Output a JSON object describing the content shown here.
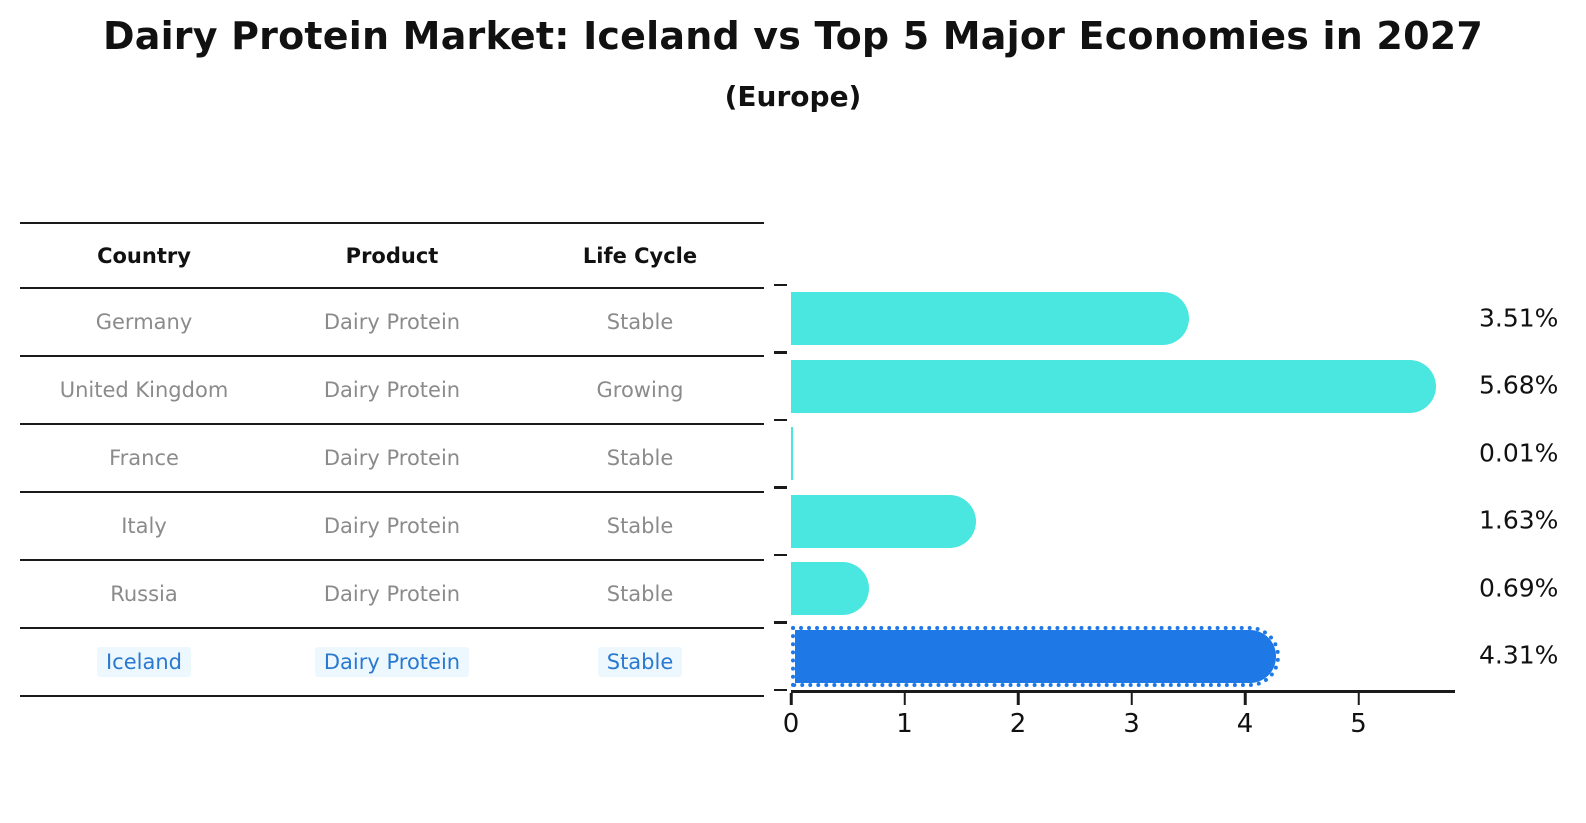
{
  "title": "Dairy Protein Market: Iceland vs Top 5 Major Economies in 2027",
  "subtitle": "(Europe)",
  "table": {
    "headers": [
      "Country",
      "Product",
      "Life Cycle"
    ],
    "rows": [
      {
        "country": "Germany",
        "product": "Dairy Protein",
        "life_cycle": "Stable",
        "highlight": false
      },
      {
        "country": "United Kingdom",
        "product": "Dairy Protein",
        "life_cycle": "Growing",
        "highlight": false
      },
      {
        "country": "France",
        "product": "Dairy Protein",
        "life_cycle": "Stable",
        "highlight": false
      },
      {
        "country": "Italy",
        "product": "Dairy Protein",
        "life_cycle": "Stable",
        "highlight": false
      },
      {
        "country": "Russia",
        "product": "Dairy Protein",
        "life_cycle": "Stable",
        "highlight": false
      },
      {
        "country": "Iceland",
        "product": "Dairy Protein",
        "life_cycle": "Stable",
        "highlight": true
      }
    ]
  },
  "chart_data": {
    "type": "bar",
    "orientation": "horizontal",
    "title": "Dairy Protein Market: Iceland vs Top 5 Major Economies in 2027",
    "subtitle": "(Europe)",
    "categories": [
      "Germany",
      "United Kingdom",
      "France",
      "Italy",
      "Russia",
      "Iceland"
    ],
    "values": [
      3.51,
      5.68,
      0.01,
      1.63,
      0.69,
      4.31
    ],
    "labels": [
      "3.51%",
      "5.68%",
      "0.01%",
      "1.63%",
      "0.69%",
      "4.31%"
    ],
    "x_ticks": [
      "0",
      "1",
      "2",
      "3",
      "4",
      "5"
    ],
    "xlim": [
      0,
      5.85
    ],
    "xlabel": "",
    "ylabel": "",
    "grid": false,
    "legend": "none",
    "bar_color": "#4ae6e0",
    "highlight_index": 5,
    "highlight_color": "#1e78e6",
    "highlight_edge_style": "dotted"
  },
  "colors": {
    "bar": "#4ae6e0",
    "highlight_bar": "#1e78e6",
    "highlight_text": "#2979d0",
    "cell_text": "#8b8b8b",
    "header_text": "#111111",
    "axis": "#1a1a1a",
    "background": "#ffffff"
  }
}
